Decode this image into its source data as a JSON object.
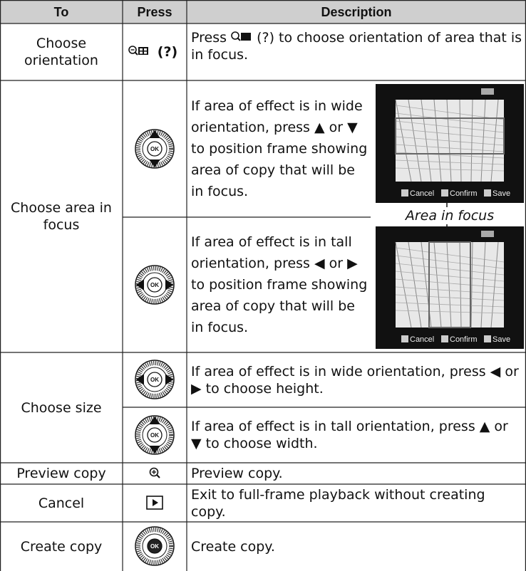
{
  "table": {
    "header": [
      "To",
      "Press",
      "Description"
    ],
    "rows": [
      {
        "to": "Choose orientation",
        "press": "(?)",
        "description": [
          "Press",
          "(?) to choose orientation of area that is in focus."
        ]
      },
      {
        "to": "Choose area in focus",
        "steps": [
          {
            "description": "If area of effect is in wide orientation, press ▲ or ▼ to position frame showing area of copy that will be in focus."
          },
          {
            "description": "If area of effect is in tall orientation, press ◀ or ▶ to position frame showing area of copy that will be in focus."
          }
        ]
      },
      {
        "to": "Choose size",
        "steps": [
          {
            "description": "If area of effect is in wide orientation, press ◀ or ▶ to choose height."
          },
          {
            "description": "If area of effect is in tall orientation, press ▲ or ▼ to choose width."
          }
        ]
      },
      {
        "to": "Preview copy",
        "description": "Preview copy."
      },
      {
        "to": "Cancel",
        "description": "Exit to full-frame playback without creating copy."
      },
      {
        "to": "Create copy",
        "description": "Create copy."
      }
    ]
  },
  "screens": {
    "caption": "Area in focus",
    "buttons": [
      "Cancel",
      "Confirm",
      "Save"
    ]
  },
  "icons": {
    "ok": "OK"
  }
}
